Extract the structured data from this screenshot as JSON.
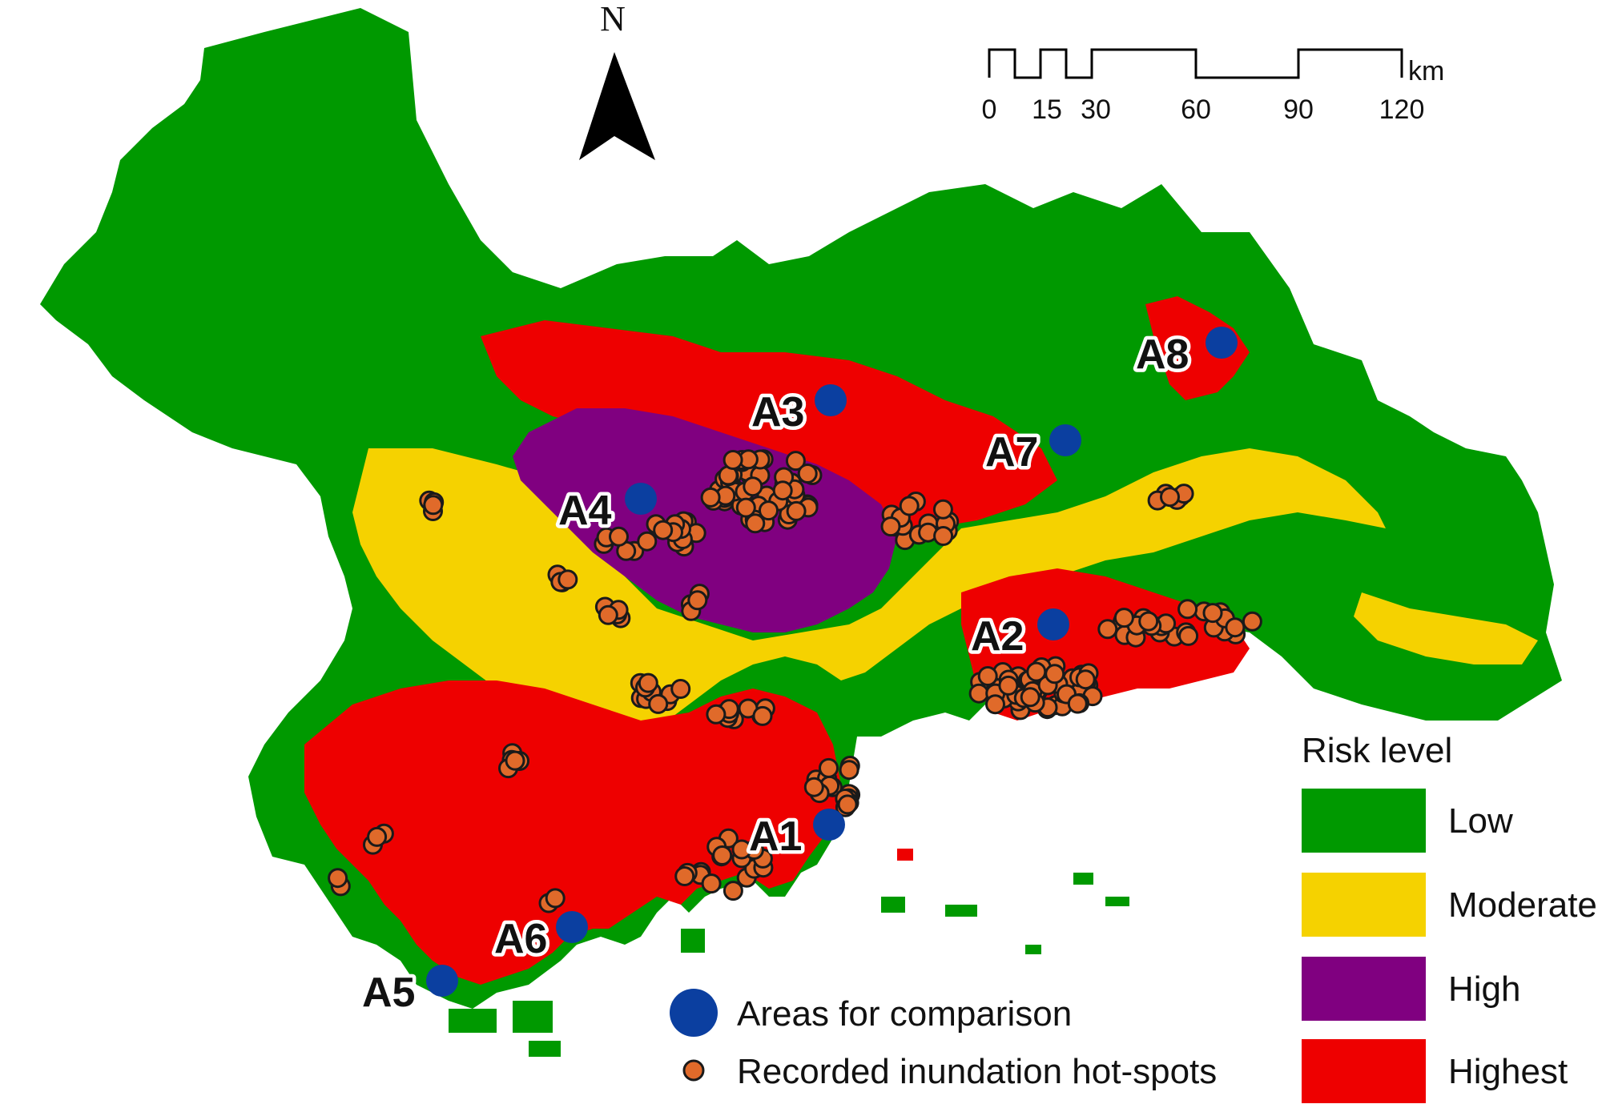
{
  "north_label": "N",
  "scale": {
    "ticks": [
      "0",
      "15",
      "30",
      "60",
      "90",
      "120"
    ],
    "unit": "km"
  },
  "legend": {
    "title": "Risk level",
    "items": [
      {
        "label": "Low",
        "color": "#009900"
      },
      {
        "label": "Moderate",
        "color": "#f5d200"
      },
      {
        "label": "High",
        "color": "#800080"
      },
      {
        "label": "Highest",
        "color": "#ee0000"
      }
    ],
    "symbols": [
      {
        "label": "Areas for comparison",
        "color": "#0b3fa0"
      },
      {
        "label": "Recorded inundation hot-spots",
        "color": "#e06a2a"
      }
    ]
  },
  "areas": [
    "A1",
    "A2",
    "A3",
    "A4",
    "A5",
    "A6",
    "A7",
    "A8"
  ],
  "colors": {
    "low": "#009900",
    "moderate": "#f5d200",
    "high": "#800080",
    "highest": "#ee0000",
    "comparison_marker": "#0b3fa0",
    "hotspot_fill": "#e06a2a",
    "hotspot_stroke": "#1a1a1a"
  }
}
